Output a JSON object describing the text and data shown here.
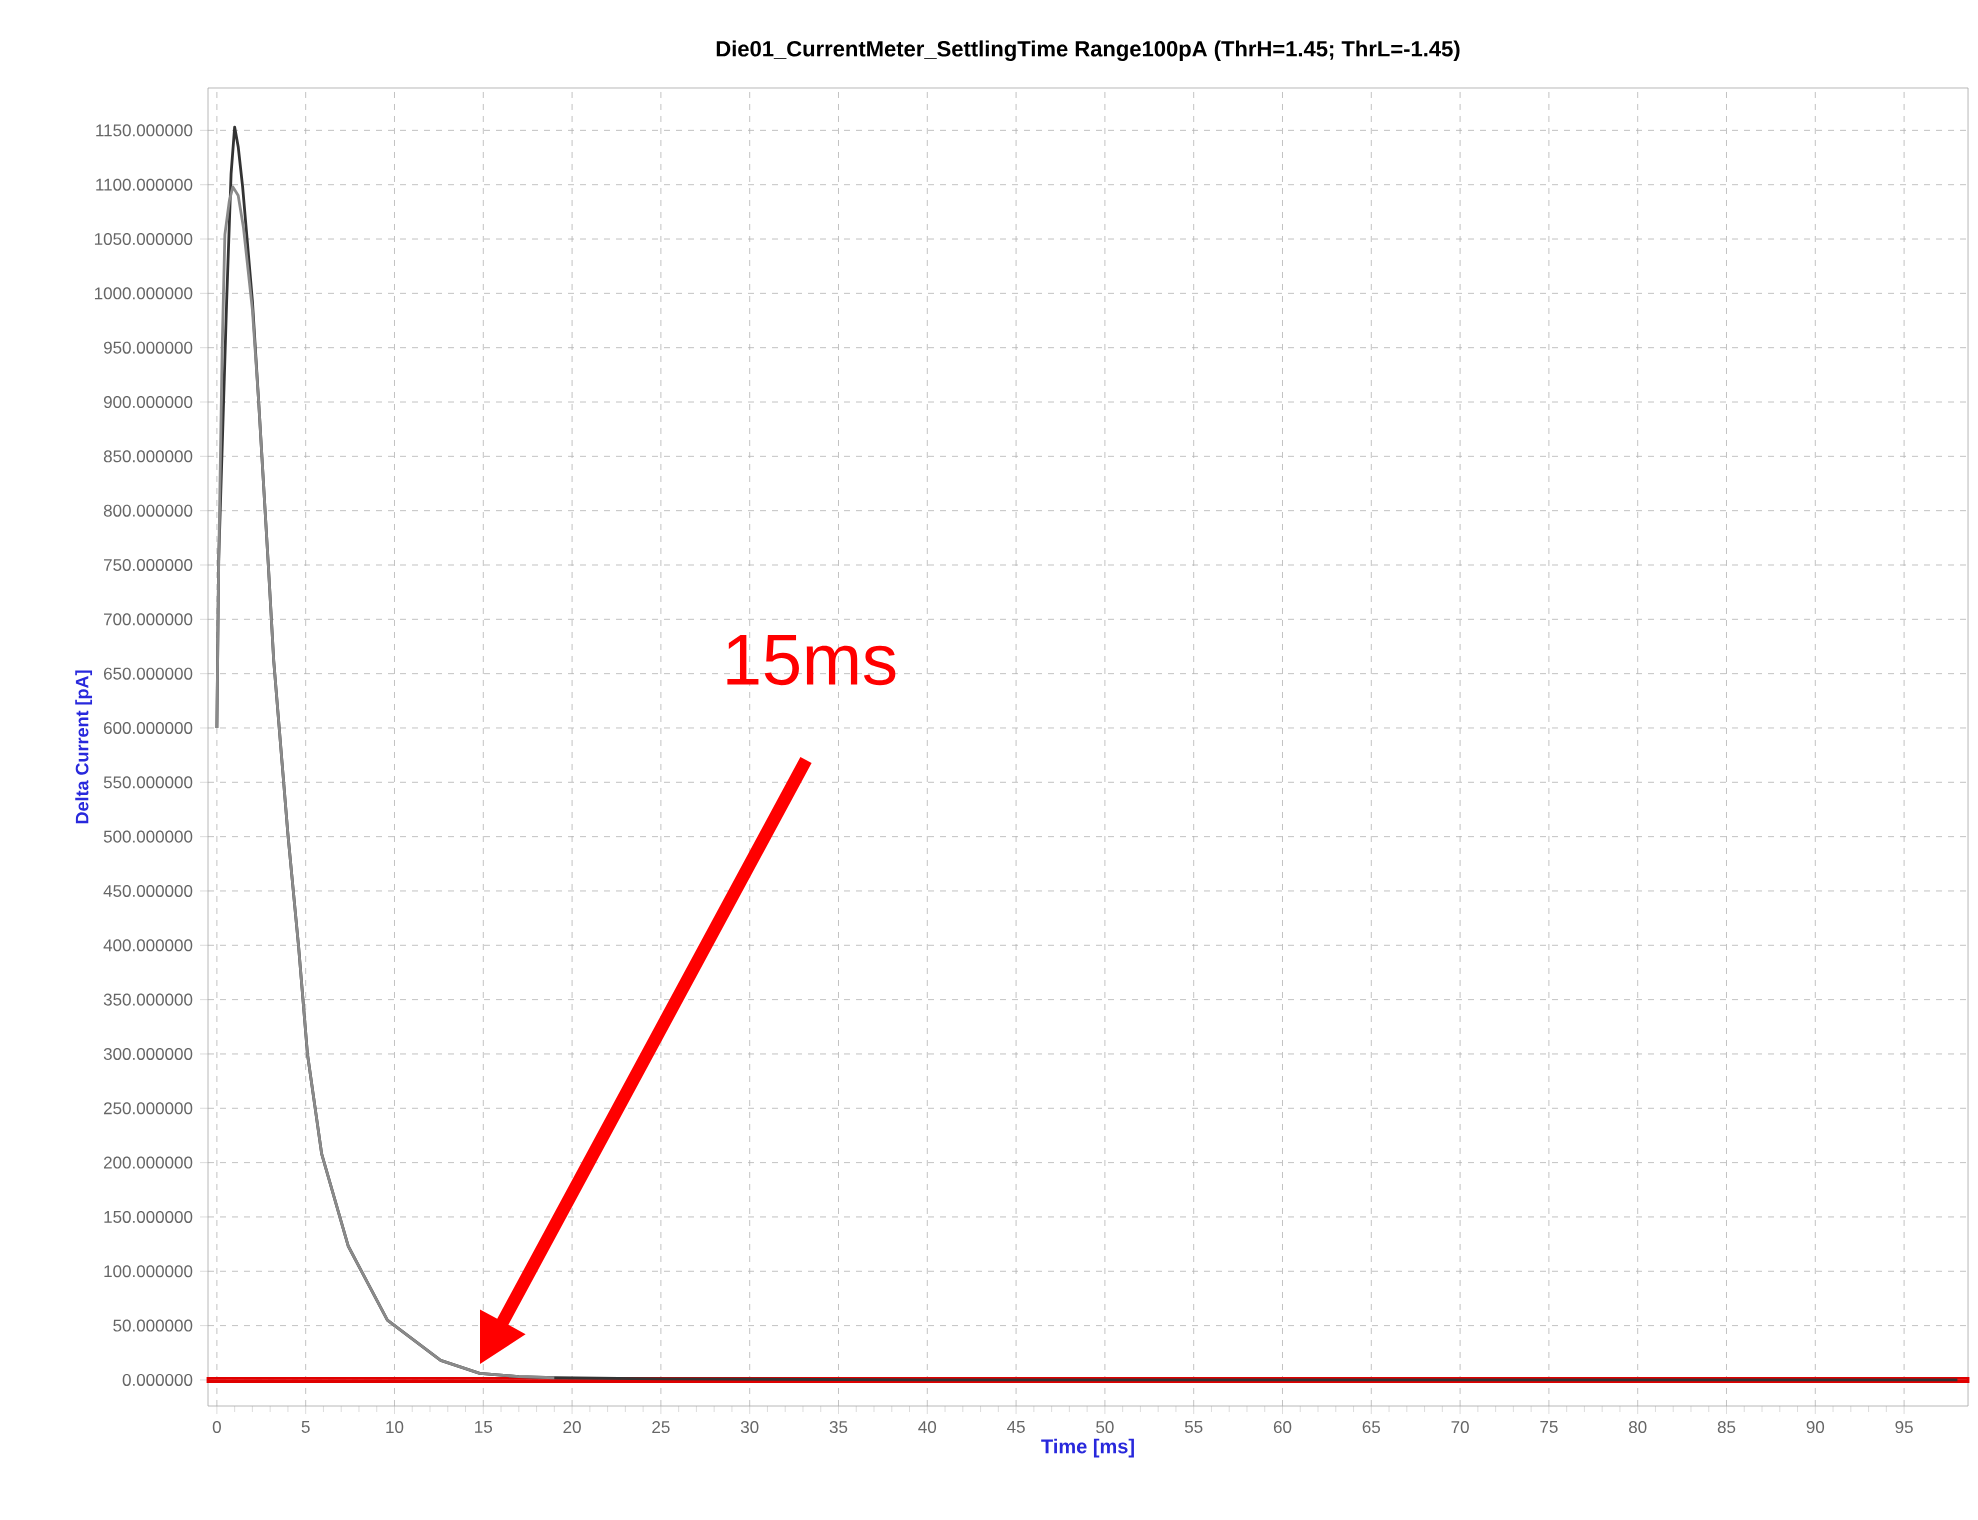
{
  "chart_data": {
    "type": "line",
    "title": "Die01_CurrentMeter_SettlingTime Range100pA (ThrH=1.45; ThrL=-1.45)",
    "xlabel": "Time [ms]",
    "ylabel": "Delta Current [pA]",
    "series": [
      {
        "color": "#333333",
        "x": [
          0,
          0.1,
          0.3,
          0.55,
          0.8,
          1.0,
          1.2,
          1.45,
          2.0,
          2.35,
          2.9,
          3.2,
          4.0,
          4.6,
          5.1,
          5.9,
          7.4,
          9.6,
          12.6,
          14.8,
          17,
          19,
          25,
          40,
          60,
          80,
          98
        ],
        "values": [
          600,
          754,
          859,
          993,
          1110,
          1153,
          1135,
          1098,
          993,
          901,
          749,
          662,
          502,
          399,
          300,
          208,
          123,
          55,
          18,
          6,
          3,
          2,
          1,
          0,
          0,
          0,
          0
        ]
      },
      {
        "color": "#8a8a8a",
        "x": [
          0,
          0.1,
          0.3,
          0.45,
          0.7,
          0.9,
          1.2,
          1.5,
          2.0,
          2.35,
          2.9,
          3.2,
          4.0,
          4.6,
          5.1,
          5.9,
          7.4,
          9.6,
          12.6,
          14.8,
          17,
          19
        ],
        "values": [
          600,
          750,
          950,
          1054,
          1085,
          1098,
          1090,
          1060,
          985,
          901,
          749,
          662,
          502,
          399,
          300,
          208,
          123,
          55,
          18,
          6,
          3,
          2
        ]
      }
    ],
    "xlim": [
      -0.5,
      98.6
    ],
    "ylim": [
      -24,
      1189
    ],
    "xticks": [
      0,
      5,
      10,
      15,
      20,
      25,
      30,
      35,
      40,
      45,
      50,
      55,
      60,
      65,
      70,
      75,
      80,
      85,
      90,
      95
    ],
    "yticks": [
      {
        "value": 0,
        "label": "0.000000"
      },
      {
        "value": 50,
        "label": "50.000000"
      },
      {
        "value": 100,
        "label": "100.000000"
      },
      {
        "value": 150,
        "label": "150.000000"
      },
      {
        "value": 200,
        "label": "200.000000"
      },
      {
        "value": 250,
        "label": "250.000000"
      },
      {
        "value": 300,
        "label": "300.000000"
      },
      {
        "value": 350,
        "label": "350.000000"
      },
      {
        "value": 400,
        "label": "400.000000"
      },
      {
        "value": 450,
        "label": "450.000000"
      },
      {
        "value": 500,
        "label": "500.000000"
      },
      {
        "value": 550,
        "label": "550.000000"
      },
      {
        "value": 600,
        "label": "600.000000"
      },
      {
        "value": 650,
        "label": "650.000000"
      },
      {
        "value": 700,
        "label": "700.000000"
      },
      {
        "value": 750,
        "label": "750.000000"
      },
      {
        "value": 800,
        "label": "800.000000"
      },
      {
        "value": 850,
        "label": "850.000000"
      },
      {
        "value": 900,
        "label": "900.000000"
      },
      {
        "value": 950,
        "label": "950.000000"
      },
      {
        "value": 1000,
        "label": "1000.000000"
      },
      {
        "value": 1050,
        "label": "1050.000000"
      },
      {
        "value": 1100,
        "label": "1100.000000"
      },
      {
        "value": 1150,
        "label": "1150.000000"
      }
    ],
    "grid": true,
    "bands": [
      {
        "axis": "y",
        "from": -1.45,
        "to": 1.45,
        "color": "#e00000"
      }
    ],
    "annotations": [
      "15ms"
    ]
  }
}
